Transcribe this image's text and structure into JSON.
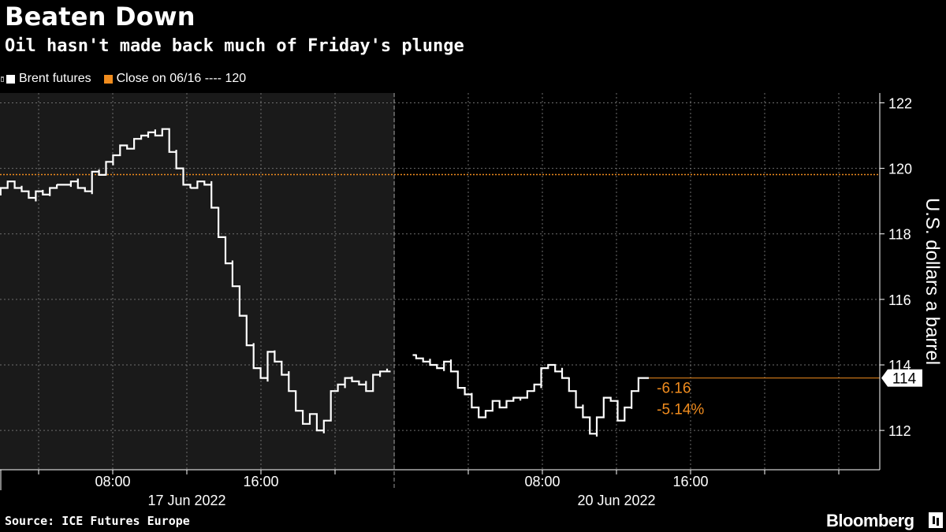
{
  "header": {
    "title": "Beaten Down",
    "subtitle": "Oil hasn't made back much of Friday's plunge"
  },
  "legend": {
    "brent_label": "Brent futures",
    "close_label": "Close on 06/16 ---- 120"
  },
  "footer": {
    "source": "Source: ICE Futures Europe",
    "brand": "Bloomberg"
  },
  "colors": {
    "background": "#000000",
    "session_shade": "#1a1a1a",
    "line": "#ffffff",
    "accent": "#f08c1e",
    "grid": "#6e6e6e"
  },
  "chart_data": {
    "type": "line",
    "ylabel": "U.S. dollars a barrel",
    "ylim": [
      110.8,
      122.3
    ],
    "y_ticks": [
      "112",
      "114",
      "116",
      "118",
      "120",
      "122"
    ],
    "x_ticks": [
      "08:00",
      "16:00",
      "08:00",
      "16:00"
    ],
    "x_date_labels": [
      "17 Jun 2022",
      "20 Jun 2022"
    ],
    "reference_line": {
      "label": "Close on 06/16",
      "value": 119.81
    },
    "last_value_label": "114",
    "change_labels": [
      "-6.16",
      "-5.14%"
    ],
    "series": [
      {
        "name": "Brent futures",
        "sessions": [
          {
            "date": "17 Jun 2022",
            "start_time": "01:00",
            "end_time": "23:00",
            "values": [
              119.1,
              118.9,
              119.2,
              119.4,
              119.6,
              119.4,
              119.3,
              119.1,
              119.3,
              119.2,
              119.4,
              119.5,
              119.5,
              119.6,
              119.4,
              119.3,
              119.9,
              119.8,
              120.2,
              120.4,
              120.7,
              120.6,
              120.9,
              121.0,
              121.1,
              121.0,
              121.2,
              120.5,
              120.0,
              119.5,
              119.4,
              119.6,
              119.5,
              118.8,
              117.9,
              117.1,
              116.4,
              115.5,
              114.6,
              113.9,
              113.6,
              114.4,
              114.1,
              113.7,
              113.2,
              112.6,
              112.2,
              112.5,
              112.0,
              112.3,
              113.2,
              113.4,
              113.6,
              113.5,
              113.4,
              113.2,
              113.7,
              113.8,
              113.8
            ]
          },
          {
            "date": "20 Jun 2022",
            "start_time": "01:00",
            "end_time": "13:45",
            "values": [
              114.3,
              114.2,
              114.1,
              114.0,
              113.9,
              114.1,
              113.8,
              113.3,
              113.1,
              112.7,
              112.4,
              112.6,
              112.9,
              112.7,
              112.9,
              113.0,
              113.0,
              113.2,
              113.4,
              113.9,
              114.0,
              113.8,
              113.6,
              113.2,
              112.7,
              112.4,
              111.9,
              112.4,
              113.0,
              112.9,
              112.3,
              112.7,
              113.2,
              113.6,
              113.6
            ]
          }
        ]
      }
    ]
  }
}
